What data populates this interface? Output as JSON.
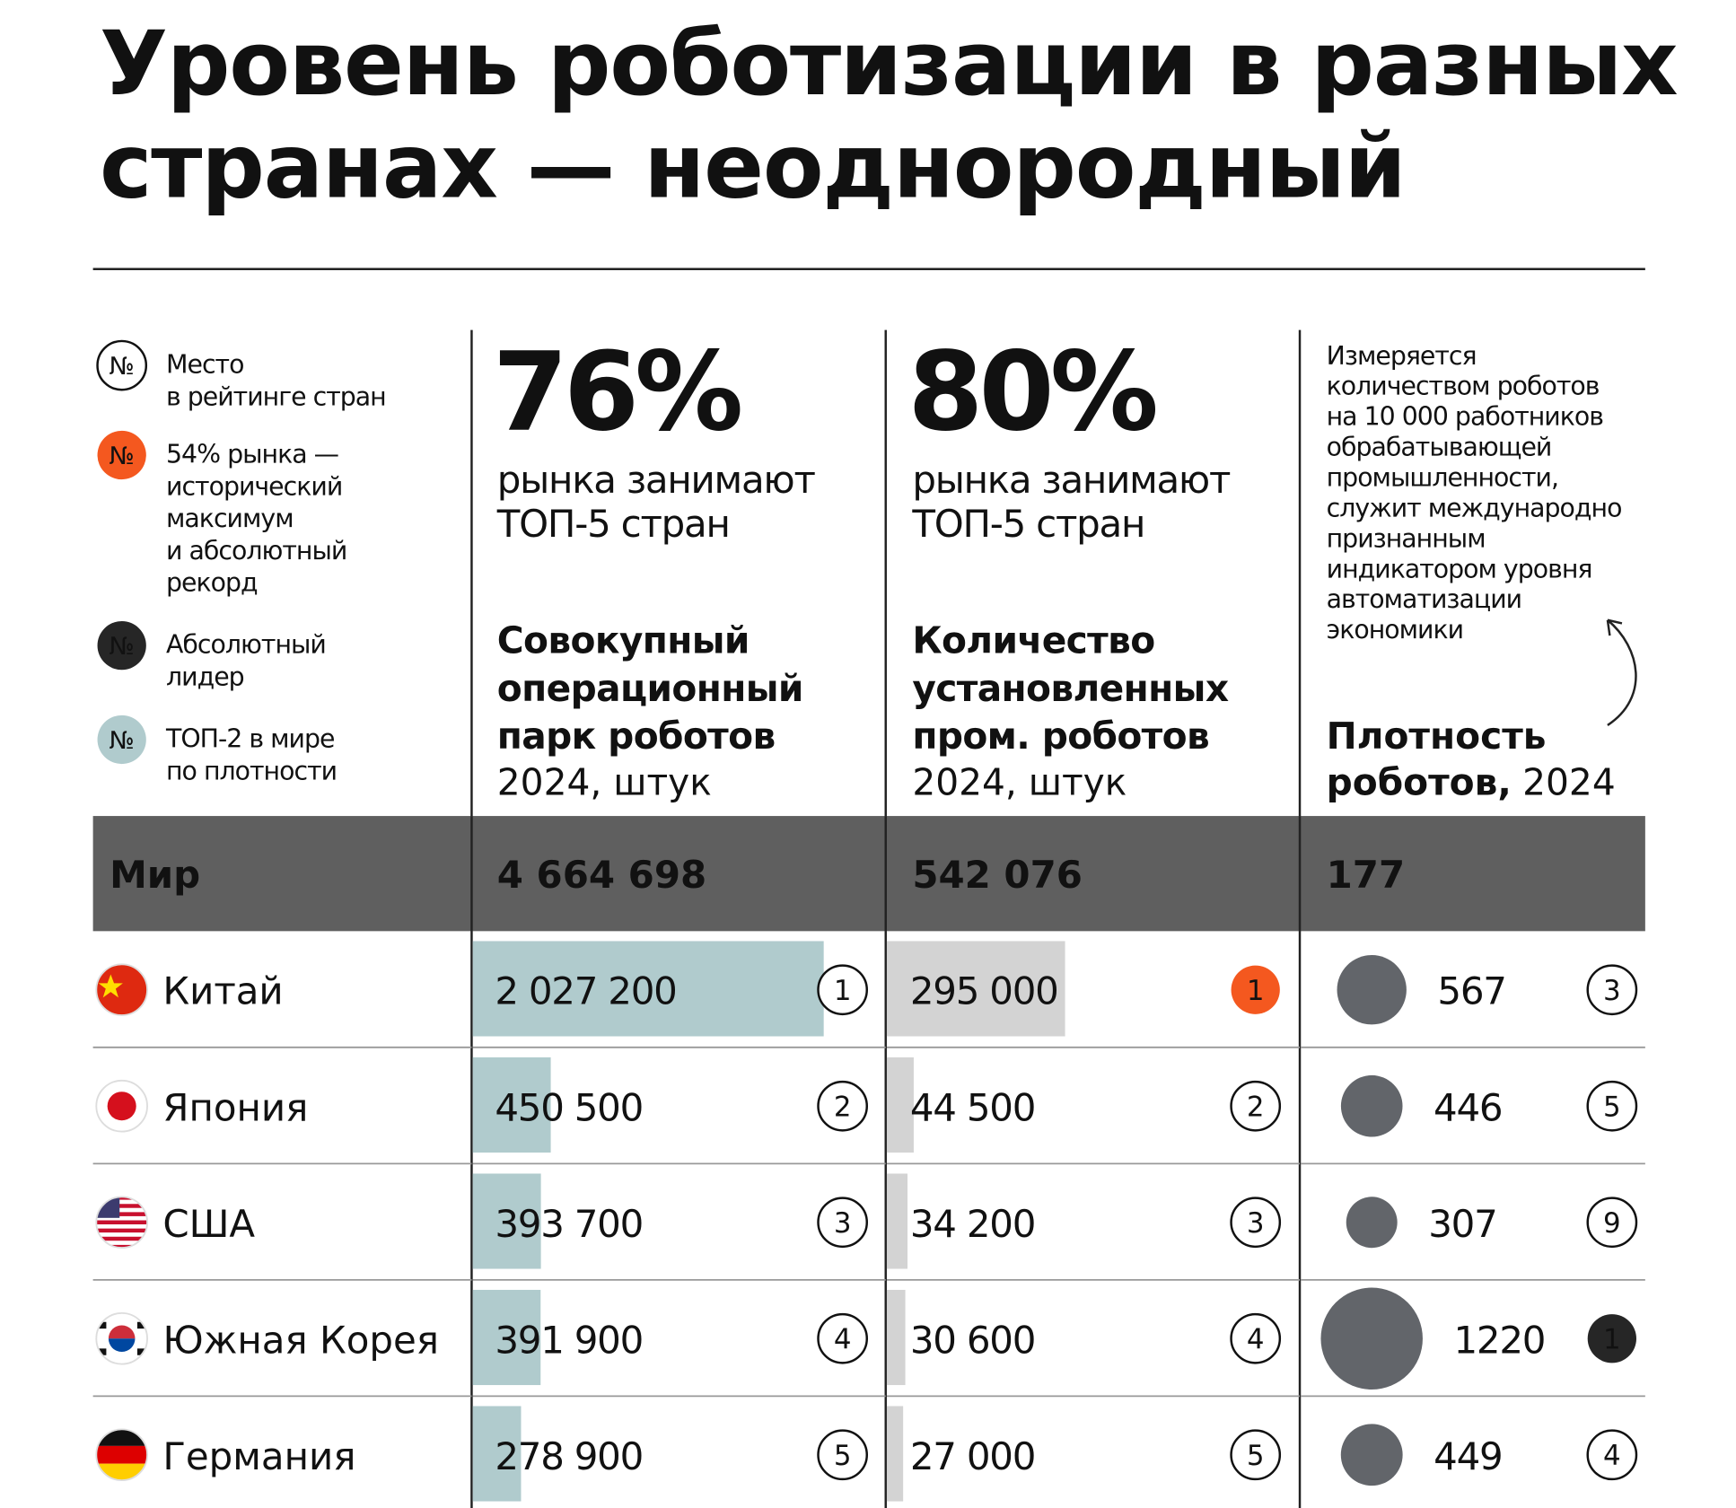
{
  "title": [
    "Уровень роботизации в разных",
    "странах — неоднородный"
  ],
  "legend": [
    {
      "symbol": "№",
      "lines": [
        "Место",
        "в рейтинге стран"
      ],
      "color": "#ffffff"
    },
    {
      "symbol": "№",
      "lines": [
        "54% рынка —",
        "исторический",
        "максимум",
        "и абсолютный",
        "рекорд"
      ],
      "color": "#f4581f"
    },
    {
      "symbol": "№",
      "lines": [
        "Абсолютный",
        "лидер"
      ],
      "color": "#262626"
    },
    {
      "symbol": "№",
      "lines": [
        "ТОП-2 в мире",
        "по плотности"
      ],
      "color": "#b0cbcd"
    }
  ],
  "columns": [
    {
      "headline": "76%",
      "caption": [
        "рынка занимают",
        "ТОП-5 стран"
      ],
      "heading": [
        "Совокупный",
        "операционный",
        "парк роботов"
      ],
      "subheading": "2024, штук",
      "bar_color": "#b0cbcd"
    },
    {
      "headline": "80%",
      "caption": [
        "рынка занимают",
        "ТОП-5 стран"
      ],
      "heading": [
        "Количество",
        "установленных",
        "пром. роботов"
      ],
      "subheading": "2024, штук",
      "bar_color": "#d3d3d3"
    },
    {
      "description": [
        "Измеряется",
        "количеством роботов",
        "на 10 000 работников",
        "обрабатывающей",
        "промышленности,",
        "служит международно",
        "признанным",
        "индикатором уровня",
        "автоматизации",
        "экономики"
      ],
      "heading": [
        "Плотность",
        "роботов,"
      ],
      "subheading": "2024",
      "bubble_color": "#62656a"
    }
  ],
  "world": {
    "label": "Мир",
    "stock": {
      "value": 4664698,
      "label": "4 664 698"
    },
    "installs": {
      "value": 542076,
      "label": "542 076"
    },
    "density": 177
  },
  "rows": [
    {
      "country": "Китай",
      "stock": {
        "value": 2027200,
        "label": "2 027 200"
      },
      "stock_rank": 1,
      "installs": {
        "value": 295000,
        "label": "295 000"
      },
      "installs_rank": 1,
      "density": 567,
      "density_rank": 3,
      "highlight": {
        "installs_rank": "#f4581f"
      }
    },
    {
      "country": "Япония",
      "stock": {
        "value": 450500,
        "label": "450 500"
      },
      "stock_rank": 2,
      "installs": {
        "value": 44500,
        "label": "44 500"
      },
      "installs_rank": 2,
      "density": 446,
      "density_rank": 5
    },
    {
      "country": "США",
      "stock": {
        "value": 393700,
        "label": "393 700"
      },
      "stock_rank": 3,
      "installs": {
        "value": 34200,
        "label": "34 200"
      },
      "installs_rank": 3,
      "density": 307,
      "density_rank": 9
    },
    {
      "country": "Южная Корея",
      "stock": {
        "value": 391900,
        "label": "391 900"
      },
      "stock_rank": 4,
      "installs": {
        "value": 30600,
        "label": "30 600"
      },
      "installs_rank": 4,
      "density": 1220,
      "density_rank": 1,
      "highlight": {
        "density_rank": "#262626"
      }
    },
    {
      "country": "Германия",
      "stock": {
        "value": 278900,
        "label": "278 900"
      },
      "stock_rank": 5,
      "installs": {
        "value": 27000,
        "label": "27 000"
      },
      "installs_rank": 5,
      "density": 449,
      "density_rank": 4
    }
  ]
}
